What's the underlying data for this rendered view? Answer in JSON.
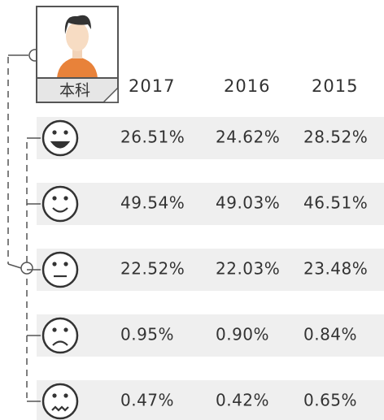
{
  "badge": {
    "label": "本科"
  },
  "table": {
    "columns": [
      "2017",
      "2016",
      "2015"
    ],
    "rows": [
      [
        "26.51%",
        "24.62%",
        "28.52%"
      ],
      [
        "49.54%",
        "49.03%",
        "46.51%"
      ],
      [
        "22.52%",
        "22.03%",
        "23.48%"
      ],
      [
        "0.95%",
        "0.90%",
        "0.84%"
      ],
      [
        "0.47%",
        "0.42%",
        "0.65%"
      ]
    ]
  }
}
